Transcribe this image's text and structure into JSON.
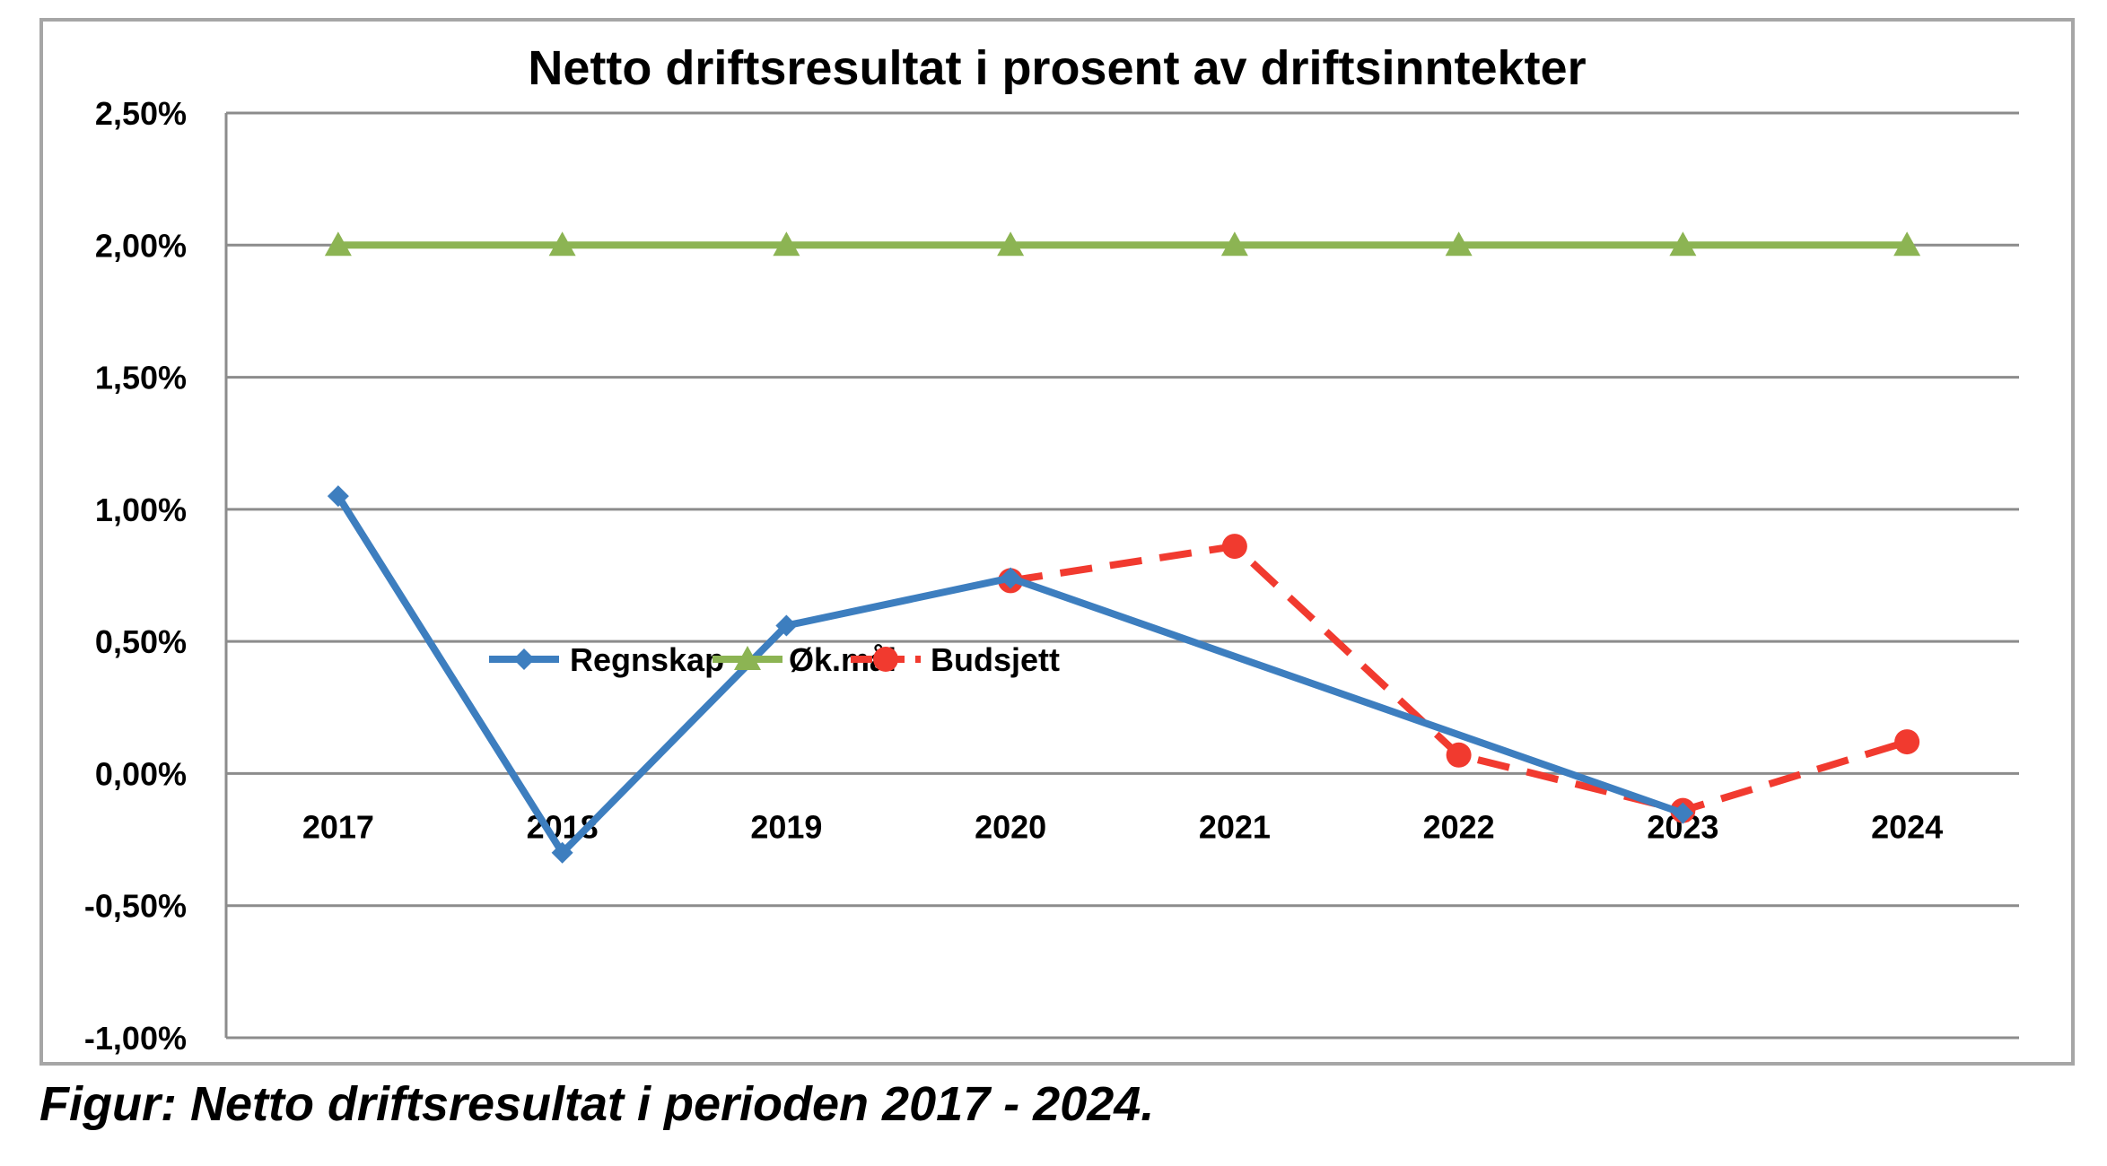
{
  "chart_data": {
    "type": "line",
    "title": "Netto driftsresultat i prosent av driftsinntekter",
    "categories": [
      "2017",
      "2018",
      "2019",
      "2020",
      "2021",
      "2022",
      "2023",
      "2024"
    ],
    "ylim": [
      -1.0,
      2.5
    ],
    "yticks": [
      2.5,
      2.0,
      1.5,
      1.0,
      0.5,
      0.0,
      -0.5,
      -1.0
    ],
    "ytick_labels": [
      "2,50%",
      "2,00%",
      "1,50%",
      "1,00%",
      "0,50%",
      "0,00%",
      "-0,50%",
      "-1,00%"
    ],
    "grid": true,
    "legend_position": "bottom",
    "series": [
      {
        "name": "Regnskap",
        "color": "#3d7ebf",
        "marker": "diamond",
        "dash": "solid",
        "values": [
          1.05,
          -0.3,
          0.56,
          0.74,
          null,
          null,
          -0.15,
          null
        ]
      },
      {
        "name": "Øk.mål",
        "color": "#8cb453",
        "marker": "triangle",
        "dash": "solid",
        "values": [
          2.0,
          2.0,
          2.0,
          2.0,
          2.0,
          2.0,
          2.0,
          2.0
        ]
      },
      {
        "name": "Budsjett",
        "color": "#f13a2f",
        "marker": "circle",
        "dash": "dashed",
        "values": [
          null,
          null,
          null,
          0.73,
          0.86,
          0.07,
          -0.14,
          0.12
        ]
      }
    ]
  },
  "caption": "Figur: Netto driftsresultat i perioden 2017 - 2024."
}
